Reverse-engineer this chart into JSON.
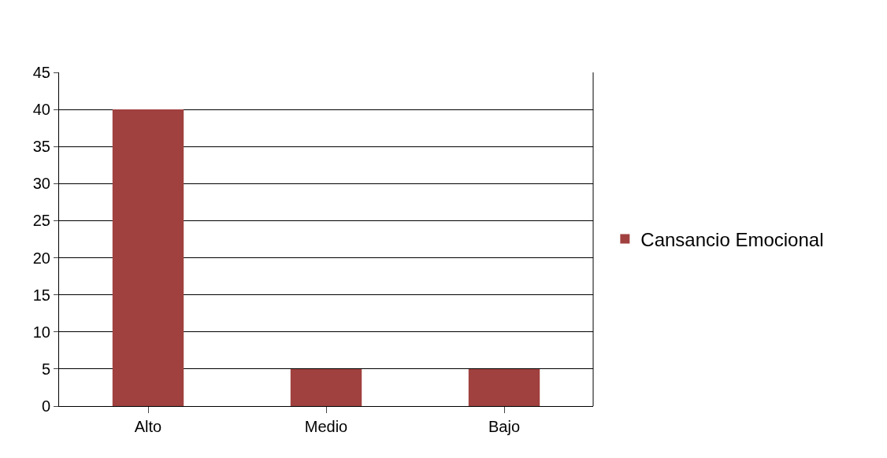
{
  "chart_data": {
    "type": "bar",
    "categories": [
      "Alto",
      "Medio",
      "Bajo"
    ],
    "series": [
      {
        "name": "Cansancio Emocional",
        "color": "#a0413f",
        "values": [
          40,
          5,
          5
        ]
      }
    ],
    "ylim": [
      0,
      45
    ],
    "yticks": [
      0,
      5,
      10,
      15,
      20,
      25,
      30,
      35,
      40,
      45
    ],
    "grid": "y",
    "legend": "right"
  }
}
